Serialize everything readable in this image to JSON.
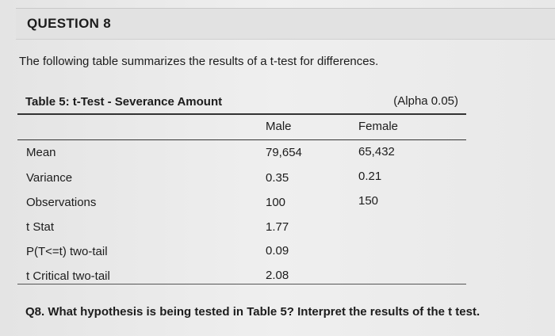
{
  "question": {
    "title": "QUESTION 8"
  },
  "intro": "The following table summarizes the results of a t-test for differences.",
  "table": {
    "title": "Table 5: t-Test - Severance Amount",
    "alpha_note": "(Alpha 0.05)",
    "columns": [
      "",
      "Male",
      "Female"
    ],
    "rows": [
      {
        "label": "Mean",
        "male": "79,654",
        "female": "65,432"
      },
      {
        "label": "Variance",
        "male": "0.35",
        "female": "0.21"
      },
      {
        "label": "Observations",
        "male": "100",
        "female": "150"
      },
      {
        "label": "t Stat",
        "male": "1.77",
        "female": ""
      },
      {
        "label": "P(T<=t) two-tail",
        "male": "0.09",
        "female": ""
      },
      {
        "label": "t Critical two-tail",
        "male": "2.08",
        "female": ""
      }
    ]
  },
  "prompt": "Q8. What hypothesis is being tested in Table 5? Interpret the results of the t test."
}
